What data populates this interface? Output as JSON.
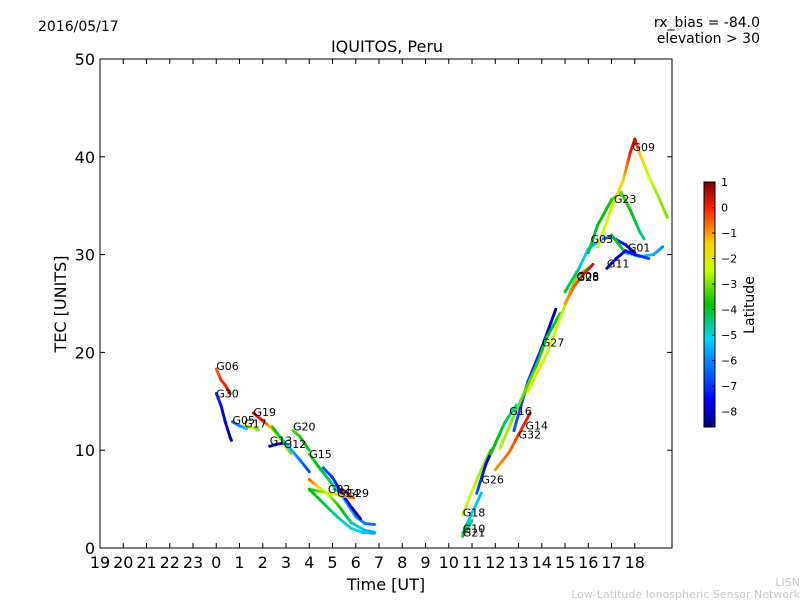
{
  "chart_data": {
    "type": "scatter",
    "date": "2016/05/17",
    "title": "IQUITOS, Peru",
    "info_lines": [
      "rx_bias = -84.0",
      "elevation > 30"
    ],
    "xlabel": "Time [UT]",
    "ylabel": "TEC [UNITS]",
    "x_ticks": [
      "19",
      "20",
      "21",
      "22",
      "23",
      "0",
      "1",
      "2",
      "3",
      "4",
      "5",
      "6",
      "7",
      "8",
      "9",
      "10",
      "11",
      "12",
      "13",
      "14",
      "15",
      "16",
      "17",
      "18"
    ],
    "xlim_hours_elapsed": [
      0,
      24.6
    ],
    "ylim": [
      0,
      50
    ],
    "y_ticks": [
      0,
      10,
      20,
      30,
      40,
      50
    ],
    "grid": false,
    "colorbar": {
      "label": "Latitude",
      "range": [
        -8.6,
        1.0
      ],
      "ticks": [
        1,
        0,
        -1,
        -2,
        -3,
        -4,
        -5,
        -6,
        -7,
        -8
      ]
    },
    "footer": [
      "LISN",
      "Low-Latitude Ionospheric Sensor Network"
    ],
    "series": [
      {
        "name": "G06",
        "label_at": [
          0.0,
          18.2
        ],
        "points": [
          [
            0.0,
            18.3,
            -0.6
          ],
          [
            0.2,
            17.2,
            -0.2
          ],
          [
            0.4,
            16.6,
            0.0
          ],
          [
            0.6,
            15.8,
            0.5
          ]
        ]
      },
      {
        "name": "G30",
        "label_at": [
          0.0,
          15.4
        ],
        "points": [
          [
            0.0,
            15.8,
            -7.0
          ],
          [
            0.2,
            14.6,
            -7.4
          ],
          [
            0.4,
            12.8,
            -7.9
          ],
          [
            0.6,
            11.3,
            -8.3
          ],
          [
            0.65,
            11.0,
            -8.5
          ]
        ]
      },
      {
        "name": "G05",
        "label_at": [
          0.7,
          12.7
        ],
        "points": [
          [
            0.7,
            12.9,
            -6.5
          ],
          [
            1.0,
            12.5,
            -6.0
          ],
          [
            1.3,
            12.2,
            -5.2
          ]
        ]
      },
      {
        "name": "G17",
        "label_at": [
          1.2,
          12.3
        ],
        "points": [
          [
            1.2,
            12.6,
            -1.5
          ],
          [
            1.5,
            12.3,
            -2.2
          ],
          [
            1.8,
            12.1,
            -3.0
          ]
        ]
      },
      {
        "name": "G19",
        "label_at": [
          1.6,
          13.5
        ],
        "points": [
          [
            1.6,
            13.8,
            0.5
          ],
          [
            2.0,
            13.0,
            0.0
          ],
          [
            2.4,
            12.2,
            -1.5
          ],
          [
            2.8,
            11.0,
            -2.5
          ],
          [
            3.2,
            9.7,
            -3.0
          ]
        ]
      },
      {
        "name": "G13",
        "label_at": [
          2.3,
          10.6
        ],
        "points": [
          [
            2.3,
            10.4,
            -8.4
          ],
          [
            2.6,
            10.6,
            -8.2
          ],
          [
            2.8,
            10.7,
            -8.0
          ]
        ]
      },
      {
        "name": "G12",
        "label_at": [
          2.9,
          10.2
        ],
        "points": [
          [
            2.4,
            12.4,
            -3.5
          ],
          [
            2.8,
            11.2,
            -4.5
          ],
          [
            3.2,
            10.1,
            -5.5
          ],
          [
            3.6,
            9.0,
            -6.2
          ],
          [
            4.0,
            7.8,
            -6.8
          ]
        ]
      },
      {
        "name": "G20",
        "label_at": [
          3.3,
          12.0
        ],
        "points": [
          [
            3.3,
            12.0,
            -3.3
          ],
          [
            3.6,
            11.4,
            -3.6
          ],
          [
            4.0,
            10.0,
            -4.0
          ]
        ]
      },
      {
        "name": "G15",
        "label_at": [
          4.0,
          9.2
        ],
        "points": [
          [
            4.0,
            9.6,
            -3.4
          ],
          [
            4.5,
            8.0,
            -4.0
          ],
          [
            5.0,
            6.5,
            -4.5
          ],
          [
            5.5,
            5.0,
            -5.2
          ],
          [
            6.0,
            3.2,
            -5.8
          ],
          [
            6.4,
            2.5,
            -6.1
          ],
          [
            6.8,
            2.4,
            -6.4
          ]
        ]
      },
      {
        "name": "G02",
        "label_at": [
          4.8,
          5.6
        ],
        "points": [
          [
            4.0,
            7.0,
            -0.5
          ],
          [
            4.4,
            6.2,
            -1.5
          ],
          [
            4.8,
            5.5,
            -2.5
          ],
          [
            5.2,
            4.5,
            -3.5
          ],
          [
            5.8,
            2.6,
            -4.5
          ],
          [
            6.4,
            1.8,
            -5.5
          ],
          [
            6.8,
            1.6,
            -6.0
          ]
        ]
      },
      {
        "name": "G24",
        "label_at": [
          5.2,
          5.2
        ],
        "points": [
          [
            4.6,
            8.2,
            -6.5
          ],
          [
            5.0,
            7.2,
            -7.0
          ],
          [
            5.4,
            5.6,
            -7.5
          ],
          [
            5.8,
            4.2,
            -8.0
          ],
          [
            6.2,
            3.0,
            -8.2
          ]
        ]
      },
      {
        "name": "G29",
        "label_at": [
          5.6,
          5.2
        ],
        "points": [
          [
            5.4,
            6.0,
            0.5
          ],
          [
            5.7,
            5.5,
            0.0
          ],
          [
            5.9,
            5.1,
            -0.5
          ],
          [
            4.0,
            6.0,
            -3.8
          ],
          [
            4.6,
            4.6,
            -4.2
          ],
          [
            5.2,
            3.2,
            -4.6
          ],
          [
            5.8,
            2.0,
            -5.0
          ],
          [
            6.3,
            1.6,
            -5.3
          ],
          [
            6.8,
            1.5,
            -5.5
          ]
        ]
      },
      {
        "name": "G18",
        "label_at": [
          10.6,
          3.2
        ],
        "points": [
          [
            10.6,
            3.4,
            -2.0
          ],
          [
            11.0,
            5.8,
            -2.4
          ],
          [
            11.4,
            8.0,
            -2.8
          ],
          [
            11.8,
            10.0,
            -3.2
          ]
        ]
      },
      {
        "name": "G10",
        "label_at": [
          10.6,
          1.6
        ],
        "points": [
          [
            10.6,
            1.5,
            -4.6
          ],
          [
            11.0,
            3.6,
            -5.0
          ],
          [
            11.4,
            5.6,
            -5.4
          ]
        ]
      },
      {
        "name": "G21",
        "label_at": [
          10.6,
          1.2
        ],
        "points": [
          [
            10.6,
            1.2,
            -4.0
          ],
          [
            11.0,
            2.8,
            -4.5
          ]
        ]
      },
      {
        "name": "G26",
        "label_at": [
          11.4,
          6.6
        ],
        "points": [
          [
            11.2,
            5.6,
            -6.5
          ],
          [
            11.6,
            8.6,
            -7.6
          ],
          [
            11.9,
            10.2,
            -8.2
          ]
        ]
      },
      {
        "name": "G16",
        "label_at": [
          12.6,
          13.6
        ],
        "points": [
          [
            11.8,
            9.6,
            -3.6
          ],
          [
            12.4,
            12.8,
            -4.2
          ],
          [
            12.9,
            14.6,
            -4.8
          ]
        ]
      },
      {
        "name": "G14",
        "label_at": [
          13.3,
          12.1
        ],
        "points": [
          [
            12.0,
            8.0,
            -1.0
          ],
          [
            12.6,
            9.8,
            -0.6
          ],
          [
            13.0,
            11.6,
            -0.2
          ],
          [
            13.5,
            13.8,
            0.2
          ]
        ]
      },
      {
        "name": "G32",
        "label_at": [
          13.0,
          11.2
        ],
        "points": [
          [
            12.8,
            12.0,
            -6.5
          ],
          [
            13.4,
            17.0,
            -6.9
          ],
          [
            14.0,
            20.5,
            -7.3
          ],
          [
            14.6,
            24.4,
            -8.3
          ]
        ]
      },
      {
        "name": "G27",
        "label_at": [
          14.0,
          20.6
        ],
        "points": [
          [
            12.2,
            10.2,
            -2.6
          ],
          [
            13.0,
            14.6,
            -3.0
          ],
          [
            13.8,
            18.8,
            -3.4
          ],
          [
            14.2,
            21.5,
            -3.8
          ],
          [
            14.8,
            24.0,
            -4.2
          ]
        ]
      },
      {
        "name": "G08",
        "label_at": [
          15.5,
          27.4
        ],
        "points": [
          [
            13.4,
            16.0,
            -1.8
          ],
          [
            14.2,
            19.8,
            -2.2
          ],
          [
            15.0,
            24.8,
            -2.6
          ],
          [
            15.5,
            27.8,
            -3.0
          ],
          [
            16.0,
            28.6,
            -3.4
          ]
        ]
      },
      {
        "name": "G28",
        "label_at": [
          15.5,
          27.3
        ],
        "points": [
          [
            15.0,
            25.0,
            -1.0
          ],
          [
            15.4,
            26.8,
            -0.5
          ],
          [
            15.8,
            28.0,
            0.0
          ],
          [
            16.2,
            29.0,
            0.4
          ]
        ]
      },
      {
        "name": "G03",
        "label_at": [
          16.1,
          31.2
        ],
        "points": [
          [
            15.0,
            26.2,
            -4.0
          ],
          [
            15.6,
            28.6,
            -4.6
          ],
          [
            16.0,
            30.6,
            -5.2
          ],
          [
            16.6,
            31.6,
            -6.0
          ],
          [
            17.0,
            31.8,
            -6.8
          ],
          [
            17.6,
            31.0,
            -7.6
          ],
          [
            18.0,
            30.2,
            -8.2
          ]
        ]
      },
      {
        "name": "G23",
        "label_at": [
          17.1,
          35.3
        ],
        "points": [
          [
            16.0,
            30.2,
            -4.2
          ],
          [
            16.4,
            33.0,
            -4.0
          ],
          [
            17.0,
            35.6,
            -3.6
          ],
          [
            17.4,
            36.4,
            -3.2
          ],
          [
            17.8,
            34.6,
            -3.8
          ],
          [
            18.2,
            32.4,
            -4.4
          ],
          [
            18.4,
            31.6,
            -4.6
          ]
        ]
      },
      {
        "name": "G09",
        "label_at": [
          17.9,
          40.6
        ],
        "points": [
          [
            16.4,
            30.8,
            -2.6
          ],
          [
            17.0,
            34.8,
            -2.2
          ],
          [
            17.5,
            37.6,
            -1.4
          ],
          [
            17.8,
            40.4,
            0.0
          ],
          [
            18.0,
            41.8,
            0.6
          ],
          [
            18.2,
            40.4,
            -1.2
          ],
          [
            18.6,
            38.0,
            -2.4
          ],
          [
            19.0,
            36.0,
            -2.8
          ],
          [
            19.4,
            33.8,
            -3.0
          ]
        ]
      },
      {
        "name": "G01",
        "label_at": [
          17.7,
          30.3
        ],
        "points": [
          [
            17.0,
            32.0,
            -3.8
          ],
          [
            17.6,
            30.2,
            -4.4
          ],
          [
            18.2,
            29.8,
            -5.0
          ],
          [
            18.8,
            30.0,
            -5.6
          ],
          [
            19.2,
            30.8,
            -6.0
          ]
        ]
      },
      {
        "name": "G11",
        "label_at": [
          16.8,
          28.7
        ],
        "points": [
          [
            16.8,
            28.6,
            -8.3
          ],
          [
            17.2,
            29.6,
            -8.1
          ],
          [
            17.6,
            30.4,
            -7.8
          ],
          [
            18.0,
            30.0,
            -7.4
          ],
          [
            18.6,
            29.6,
            -6.8
          ]
        ]
      }
    ]
  }
}
